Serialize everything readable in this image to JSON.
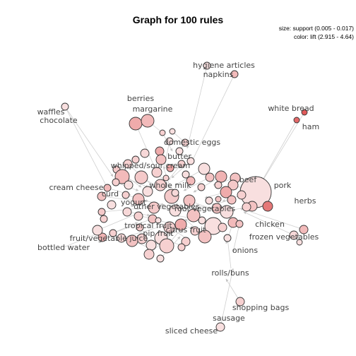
{
  "title": "Graph for 100 rules",
  "legend": {
    "size_line": "size: support (0.005 - 0.017)",
    "color_line": "color: lift (2.915 - 4.64)"
  },
  "colors": {
    "lift_low": "#fbeeee",
    "lift_high": "#e05a5a",
    "node_stroke": "#333333",
    "edge": "#cfcfcf",
    "label": "#444444"
  },
  "items": [
    {
      "id": "hygiene",
      "label": "hygiene articles"
    },
    {
      "id": "napkins",
      "label": "napkins"
    },
    {
      "id": "waffles",
      "label": "waffles"
    },
    {
      "id": "chocolate",
      "label": "chocolate"
    },
    {
      "id": "berries",
      "label": "berries"
    },
    {
      "id": "margarine",
      "label": "margarine"
    },
    {
      "id": "white_bread",
      "label": "white bread"
    },
    {
      "id": "ham",
      "label": "ham"
    },
    {
      "id": "domestic_eggs",
      "label": "domestic eggs"
    },
    {
      "id": "butter",
      "label": "butter"
    },
    {
      "id": "whipped",
      "label": "whipped/sour cream"
    },
    {
      "id": "beef",
      "label": "beef"
    },
    {
      "id": "pork",
      "label": "pork"
    },
    {
      "id": "cream_cheese",
      "label": "cream cheese"
    },
    {
      "id": "curd",
      "label": "curd"
    },
    {
      "id": "whole_milk",
      "label": "whole milk"
    },
    {
      "id": "herbs",
      "label": "herbs"
    },
    {
      "id": "yogurt",
      "label": "yogurt"
    },
    {
      "id": "other_veg",
      "label": "other vegetables"
    },
    {
      "id": "root_veg",
      "label": "root vegetables"
    },
    {
      "id": "tropical",
      "label": "tropical fruit"
    },
    {
      "id": "chicken",
      "label": "chicken"
    },
    {
      "id": "citrus",
      "label": "citrus fruit"
    },
    {
      "id": "pip",
      "label": "pip fruit"
    },
    {
      "id": "fruit_juice",
      "label": "fruit/vegetable juice"
    },
    {
      "id": "frozen_veg",
      "label": "frozen vegetables"
    },
    {
      "id": "bottled_water",
      "label": "bottled water"
    },
    {
      "id": "onions",
      "label": "onions"
    },
    {
      "id": "rolls",
      "label": "rolls/buns"
    },
    {
      "id": "shopping_bags",
      "label": "shopping bags"
    },
    {
      "id": "sausage",
      "label": "sausage"
    },
    {
      "id": "sliced_cheese",
      "label": "sliced cheese"
    }
  ]
}
